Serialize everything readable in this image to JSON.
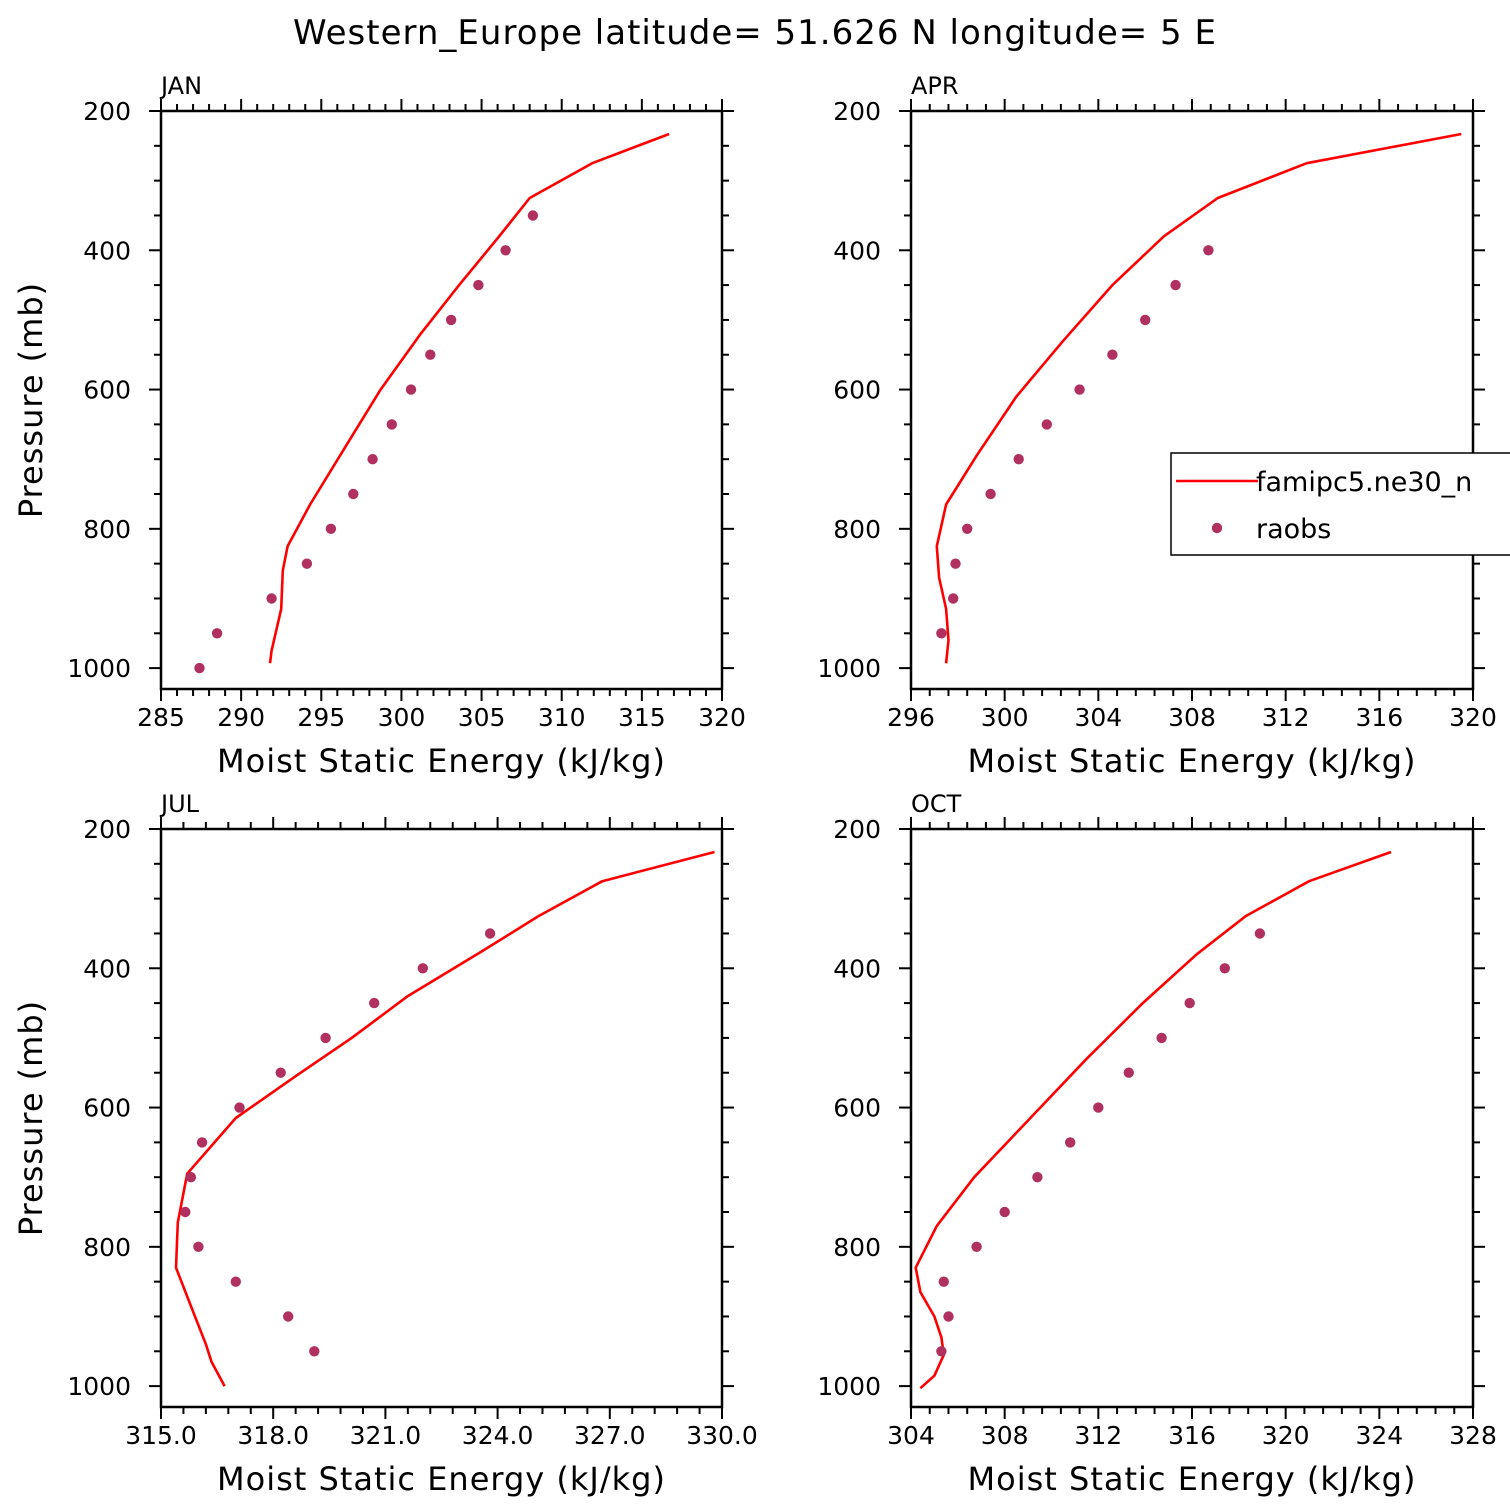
{
  "figure": {
    "title": "Western_Europe  latitude= 51.626 N longitude= 5 E"
  },
  "legend": {
    "panel": 1,
    "items": [
      {
        "label": "famipc5.ne30_n",
        "kind": "line",
        "color": "#ff0000"
      },
      {
        "label": "raobs",
        "kind": "marker",
        "color": "#b03060"
      }
    ]
  },
  "colors": {
    "model": "#ff0000",
    "obs": "#b03060",
    "axis": "#000000"
  },
  "chart_data": [
    {
      "type": "line",
      "title": "JAN",
      "xlabel": "Moist Static Energy (kJ/kg)",
      "ylabel": "Pressure (mb)",
      "xlim": [
        285,
        320
      ],
      "ylim": [
        1030,
        200
      ],
      "y_reversed": true,
      "xticks": [
        285,
        290,
        295,
        300,
        305,
        310,
        315,
        320
      ],
      "xtick_labels": [
        "285",
        "290",
        "295",
        "300",
        "305",
        "310",
        "315",
        "320"
      ],
      "yticks": [
        200,
        400,
        600,
        800,
        1000
      ],
      "ytick_labels": [
        "200",
        "400",
        "600",
        "800",
        "1000"
      ],
      "series": [
        {
          "name": "famipc5.ne30_n",
          "kind": "line",
          "x": [
            316.7,
            311.9,
            308.0,
            306.1,
            303.6,
            301.2,
            298.7,
            296.3,
            294.3,
            292.9,
            292.6,
            292.5,
            291.9,
            291.8
          ],
          "y": [
            233,
            275,
            325,
            380,
            450,
            520,
            600,
            690,
            765,
            825,
            860,
            915,
            975,
            993
          ]
        },
        {
          "name": "raobs",
          "kind": "scatter",
          "x": [
            308.2,
            306.5,
            304.8,
            303.1,
            301.8,
            300.6,
            299.4,
            298.2,
            297.0,
            295.6,
            294.1,
            291.9,
            288.5,
            287.4
          ],
          "y": [
            350,
            400,
            450,
            500,
            550,
            600,
            650,
            700,
            750,
            800,
            850,
            900,
            950,
            1000
          ]
        }
      ]
    },
    {
      "type": "line",
      "title": "APR",
      "xlabel": "Moist Static Energy (kJ/kg)",
      "ylabel": "",
      "xlim": [
        296,
        320
      ],
      "ylim": [
        1030,
        200
      ],
      "y_reversed": true,
      "xticks": [
        296,
        300,
        304,
        308,
        312,
        316,
        320
      ],
      "xtick_labels": [
        "296",
        "300",
        "304",
        "308",
        "312",
        "316",
        "320"
      ],
      "yticks": [
        200,
        400,
        600,
        800,
        1000
      ],
      "ytick_labels": [
        "200",
        "400",
        "600",
        "800",
        "1000"
      ],
      "series": [
        {
          "name": "famipc5.ne30_n",
          "kind": "line",
          "x": [
            319.5,
            312.9,
            309.1,
            306.8,
            304.6,
            302.5,
            300.5,
            298.8,
            297.5,
            297.1,
            297.2,
            297.5,
            297.6,
            297.5
          ],
          "y": [
            233,
            275,
            325,
            380,
            450,
            530,
            610,
            695,
            765,
            825,
            870,
            915,
            960,
            993
          ]
        },
        {
          "name": "raobs",
          "kind": "scatter",
          "x": [
            308.7,
            307.3,
            306.0,
            304.6,
            303.2,
            301.8,
            300.6,
            299.4,
            298.4,
            297.9,
            297.8,
            297.3
          ],
          "y": [
            400,
            450,
            500,
            550,
            600,
            650,
            700,
            750,
            800,
            850,
            900,
            950
          ]
        }
      ]
    },
    {
      "type": "line",
      "title": "JUL",
      "xlabel": "Moist Static Energy (kJ/kg)",
      "ylabel": "Pressure (mb)",
      "xlim": [
        315.0,
        330.0
      ],
      "ylim": [
        1030,
        200
      ],
      "y_reversed": true,
      "xticks": [
        315.0,
        318.0,
        321.0,
        324.0,
        327.0,
        330.0
      ],
      "xtick_labels": [
        "315.0",
        "318.0",
        "321.0",
        "324.0",
        "327.0",
        "330.0"
      ],
      "yticks": [
        200,
        400,
        600,
        800,
        1000
      ],
      "ytick_labels": [
        "200",
        "400",
        "600",
        "800",
        "1000"
      ],
      "series": [
        {
          "name": "famipc5.ne30_n",
          "kind": "line",
          "x": [
            329.8,
            326.8,
            325.1,
            323.6,
            321.6,
            320.1,
            318.6,
            317.0,
            315.7,
            315.45,
            315.4,
            315.8,
            316.2,
            316.35,
            316.7
          ],
          "y": [
            233,
            275,
            325,
            375,
            440,
            500,
            555,
            615,
            695,
            765,
            830,
            885,
            940,
            965,
            1000
          ]
        },
        {
          "name": "raobs",
          "kind": "scatter",
          "x": [
            323.8,
            322.0,
            320.7,
            319.4,
            318.2,
            317.1,
            316.1,
            315.8,
            315.65,
            316.0,
            317.0,
            318.4,
            319.1
          ],
          "y": [
            350,
            400,
            450,
            500,
            550,
            600,
            650,
            700,
            750,
            800,
            850,
            900,
            950
          ]
        }
      ]
    },
    {
      "type": "line",
      "title": "OCT",
      "xlabel": "Moist Static Energy (kJ/kg)",
      "ylabel": "",
      "xlim": [
        304,
        328
      ],
      "ylim": [
        1030,
        200
      ],
      "y_reversed": true,
      "xticks": [
        304,
        308,
        312,
        316,
        320,
        324,
        328
      ],
      "xtick_labels": [
        "304",
        "308",
        "312",
        "316",
        "320",
        "324",
        "328"
      ],
      "yticks": [
        200,
        400,
        600,
        800,
        1000
      ],
      "ytick_labels": [
        "200",
        "400",
        "600",
        "800",
        "1000"
      ],
      "series": [
        {
          "name": "famipc5.ne30_n",
          "kind": "line",
          "x": [
            324.5,
            321.0,
            318.3,
            316.2,
            313.9,
            311.5,
            309.1,
            306.7,
            305.1,
            304.2,
            304.4,
            305.0,
            305.3,
            305.4,
            305.0,
            304.4
          ],
          "y": [
            233,
            275,
            325,
            380,
            450,
            530,
            615,
            700,
            770,
            830,
            865,
            900,
            930,
            955,
            985,
            1003
          ]
        },
        {
          "name": "raobs",
          "kind": "scatter",
          "x": [
            318.9,
            317.4,
            315.9,
            314.7,
            313.3,
            312.0,
            310.8,
            309.4,
            308.0,
            306.8,
            305.4,
            305.6,
            305.3
          ],
          "y": [
            350,
            400,
            450,
            500,
            550,
            600,
            650,
            700,
            750,
            800,
            850,
            900,
            950
          ]
        }
      ]
    }
  ]
}
